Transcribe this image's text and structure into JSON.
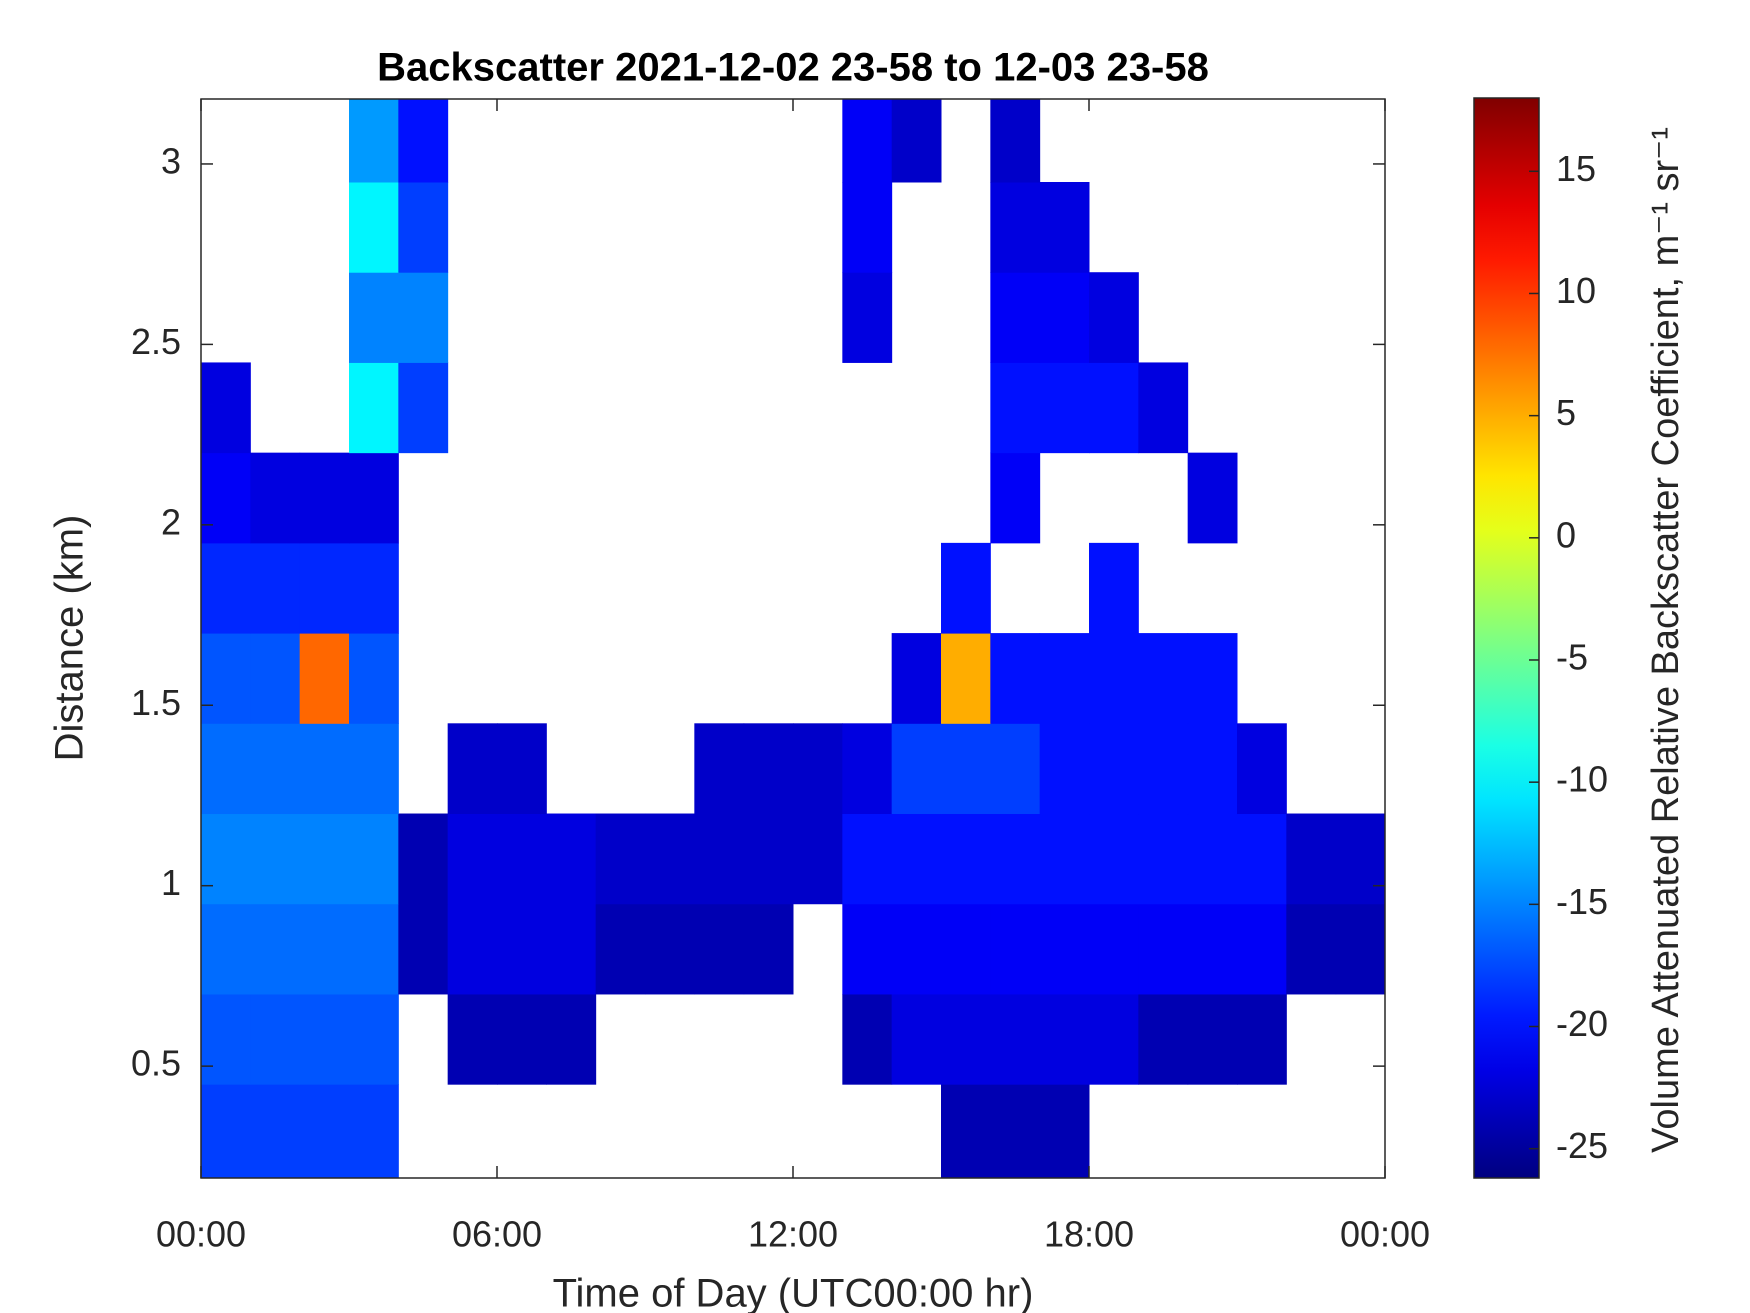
{
  "chart_data": {
    "type": "heatmap",
    "title": "Backscatter 2021-12-02 23-58 to 12-03 23-58",
    "xlabel": "Time of Day (UTC00:00 hr)",
    "ylabel": "Distance (km)",
    "colorbar_label": "Volume Attenuated Relative Backscatter Coefficient, m⁻¹ sr⁻¹",
    "colormap": "jet",
    "xlim": [
      0,
      24
    ],
    "xticks": [
      {
        "value": 0,
        "label": "00:00"
      },
      {
        "value": 6,
        "label": "06:00"
      },
      {
        "value": 12,
        "label": "12:00"
      },
      {
        "value": 18,
        "label": "18:00"
      },
      {
        "value": 24,
        "label": "00:00"
      }
    ],
    "ylim": [
      0.19,
      3.18
    ],
    "yticks": [
      0.5,
      1,
      1.5,
      2,
      2.5,
      3
    ],
    "clim": [
      -26.2,
      18
    ],
    "cticks": [
      -25,
      -20,
      -15,
      -10,
      -5,
      0,
      5,
      10,
      15
    ],
    "x_edges": [
      0,
      1,
      2,
      3,
      4,
      5,
      6,
      7,
      8,
      9,
      10,
      11,
      12,
      13,
      14,
      15,
      16,
      17,
      18,
      19,
      20,
      21,
      22,
      23,
      24
    ],
    "y_edges": [
      0.19,
      0.45,
      0.7,
      0.95,
      1.2,
      1.45,
      1.7,
      1.95,
      2.2,
      2.45,
      2.7,
      2.95,
      3.18
    ],
    "z": [
      [
        -18,
        -18,
        -18,
        -18,
        null,
        null,
        null,
        null,
        null,
        null,
        null,
        null,
        null,
        null,
        null,
        -24,
        -24,
        -24,
        null,
        null,
        null,
        null,
        null,
        null
      ],
      [
        -17,
        -17,
        -17,
        -17,
        null,
        -24,
        -24,
        -24,
        null,
        null,
        null,
        null,
        null,
        -24,
        -22,
        -22,
        -22,
        -22,
        -22,
        -24,
        -24,
        -24,
        null,
        null
      ],
      [
        -16,
        -16,
        -16,
        -16,
        -24,
        -22,
        -22,
        -22,
        -24,
        -24,
        -24,
        -24,
        null,
        -21,
        -21,
        -21,
        -21,
        -21,
        -21,
        -21,
        -21,
        -21,
        -24,
        -24
      ],
      [
        -15,
        -15,
        -15,
        -15,
        -24,
        -22,
        -22,
        -22,
        -23,
        -23,
        -23,
        -23,
        -23,
        -20,
        -20,
        -20,
        -20,
        -20,
        -20,
        -20,
        -20,
        -20,
        -23,
        -23
      ],
      [
        -16,
        -16,
        -16,
        -16,
        null,
        -23,
        -23,
        null,
        null,
        null,
        -23,
        -23,
        -23,
        -22,
        -18,
        -18,
        -18,
        -20,
        -20,
        -20,
        -20,
        -22,
        null,
        null
      ],
      [
        -17,
        -17,
        8,
        -17,
        null,
        null,
        null,
        null,
        null,
        null,
        null,
        null,
        null,
        null,
        -22,
        5,
        -20,
        -20,
        -20,
        -20,
        -20,
        null,
        null,
        null
      ],
      [
        -19,
        -19,
        -19,
        -19,
        null,
        null,
        null,
        null,
        null,
        null,
        null,
        null,
        null,
        null,
        null,
        -20,
        null,
        null,
        -20,
        null,
        null,
        null,
        null,
        null
      ],
      [
        -21,
        -22,
        -22,
        -22,
        null,
        null,
        null,
        null,
        null,
        null,
        null,
        null,
        null,
        null,
        null,
        null,
        -21,
        null,
        null,
        null,
        -22,
        null,
        null,
        null
      ],
      [
        -22,
        null,
        null,
        -10,
        -18,
        null,
        null,
        null,
        null,
        null,
        null,
        null,
        null,
        null,
        null,
        null,
        -20,
        -20,
        -20,
        -22,
        null,
        null,
        null,
        null
      ],
      [
        null,
        null,
        null,
        -15,
        -15,
        null,
        null,
        null,
        null,
        null,
        null,
        null,
        null,
        -22,
        null,
        null,
        -21,
        -21,
        -22,
        null,
        null,
        null,
        null,
        null
      ],
      [
        null,
        null,
        null,
        -10,
        -18,
        null,
        null,
        null,
        null,
        null,
        null,
        null,
        null,
        -21,
        null,
        null,
        -22,
        -22,
        null,
        null,
        null,
        null,
        null,
        null
      ],
      [
        null,
        null,
        null,
        -14,
        -20,
        null,
        null,
        null,
        null,
        null,
        null,
        null,
        null,
        -21,
        -23,
        null,
        -23,
        null,
        null,
        null,
        null,
        null,
        null,
        null
      ]
    ]
  }
}
